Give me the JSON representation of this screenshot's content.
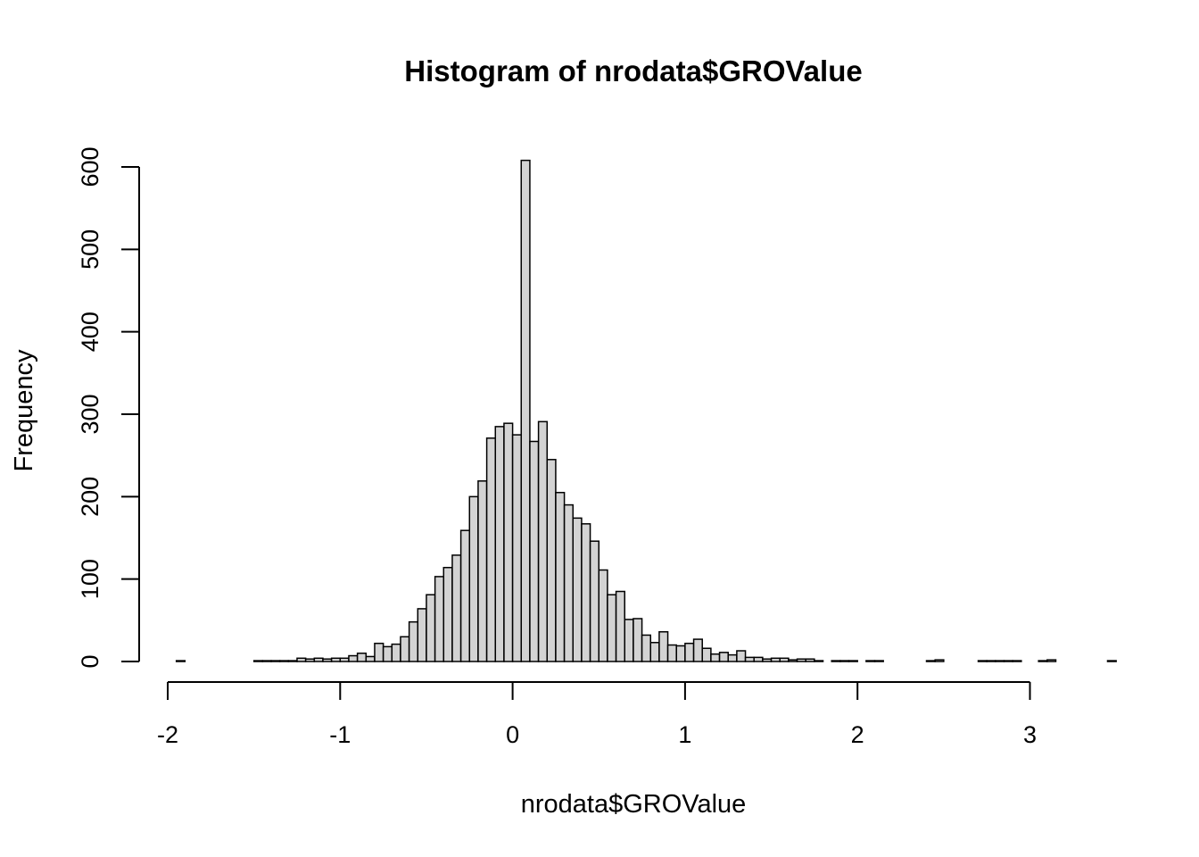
{
  "chart_data": {
    "type": "bar",
    "title": "Histogram of nrodata$GROValue",
    "xlabel": "nrodata$GROValue",
    "ylabel": "Frequency",
    "xlim": [
      -2,
      3.35
    ],
    "ylim": [
      0,
      600
    ],
    "xticks": [
      -2,
      -1,
      0,
      1,
      2,
      3
    ],
    "xtick_labels": [
      "-2",
      "-1",
      "0",
      "1",
      "2",
      "3"
    ],
    "yticks": [
      0,
      100,
      200,
      300,
      400,
      500,
      600
    ],
    "ytick_labels": [
      "0",
      "100",
      "200",
      "300",
      "400",
      "500",
      "600"
    ],
    "bin_width": 0.05,
    "bin_start": -1.95,
    "values": [
      1,
      0,
      0,
      0,
      0,
      0,
      0,
      0,
      0,
      1,
      1,
      1,
      1,
      1,
      4,
      3,
      4,
      3,
      4,
      4,
      7,
      10,
      6,
      22,
      18,
      21,
      30,
      48,
      64,
      81,
      103,
      114,
      129,
      159,
      200,
      219,
      271,
      285,
      289,
      275,
      608,
      267,
      291,
      245,
      205,
      190,
      174,
      167,
      146,
      111,
      81,
      85,
      51,
      52,
      32,
      23,
      36,
      20,
      19,
      22,
      27,
      16,
      9,
      11,
      8,
      13,
      5,
      5,
      3,
      4,
      4,
      2,
      3,
      3,
      1,
      0,
      1,
      1,
      1,
      0,
      1,
      1,
      0,
      0,
      0,
      0,
      0,
      1,
      2,
      0,
      0,
      0,
      0,
      1,
      1,
      1,
      1,
      1,
      0,
      0,
      1,
      2,
      0,
      0,
      0,
      0,
      0,
      0,
      1
    ]
  }
}
